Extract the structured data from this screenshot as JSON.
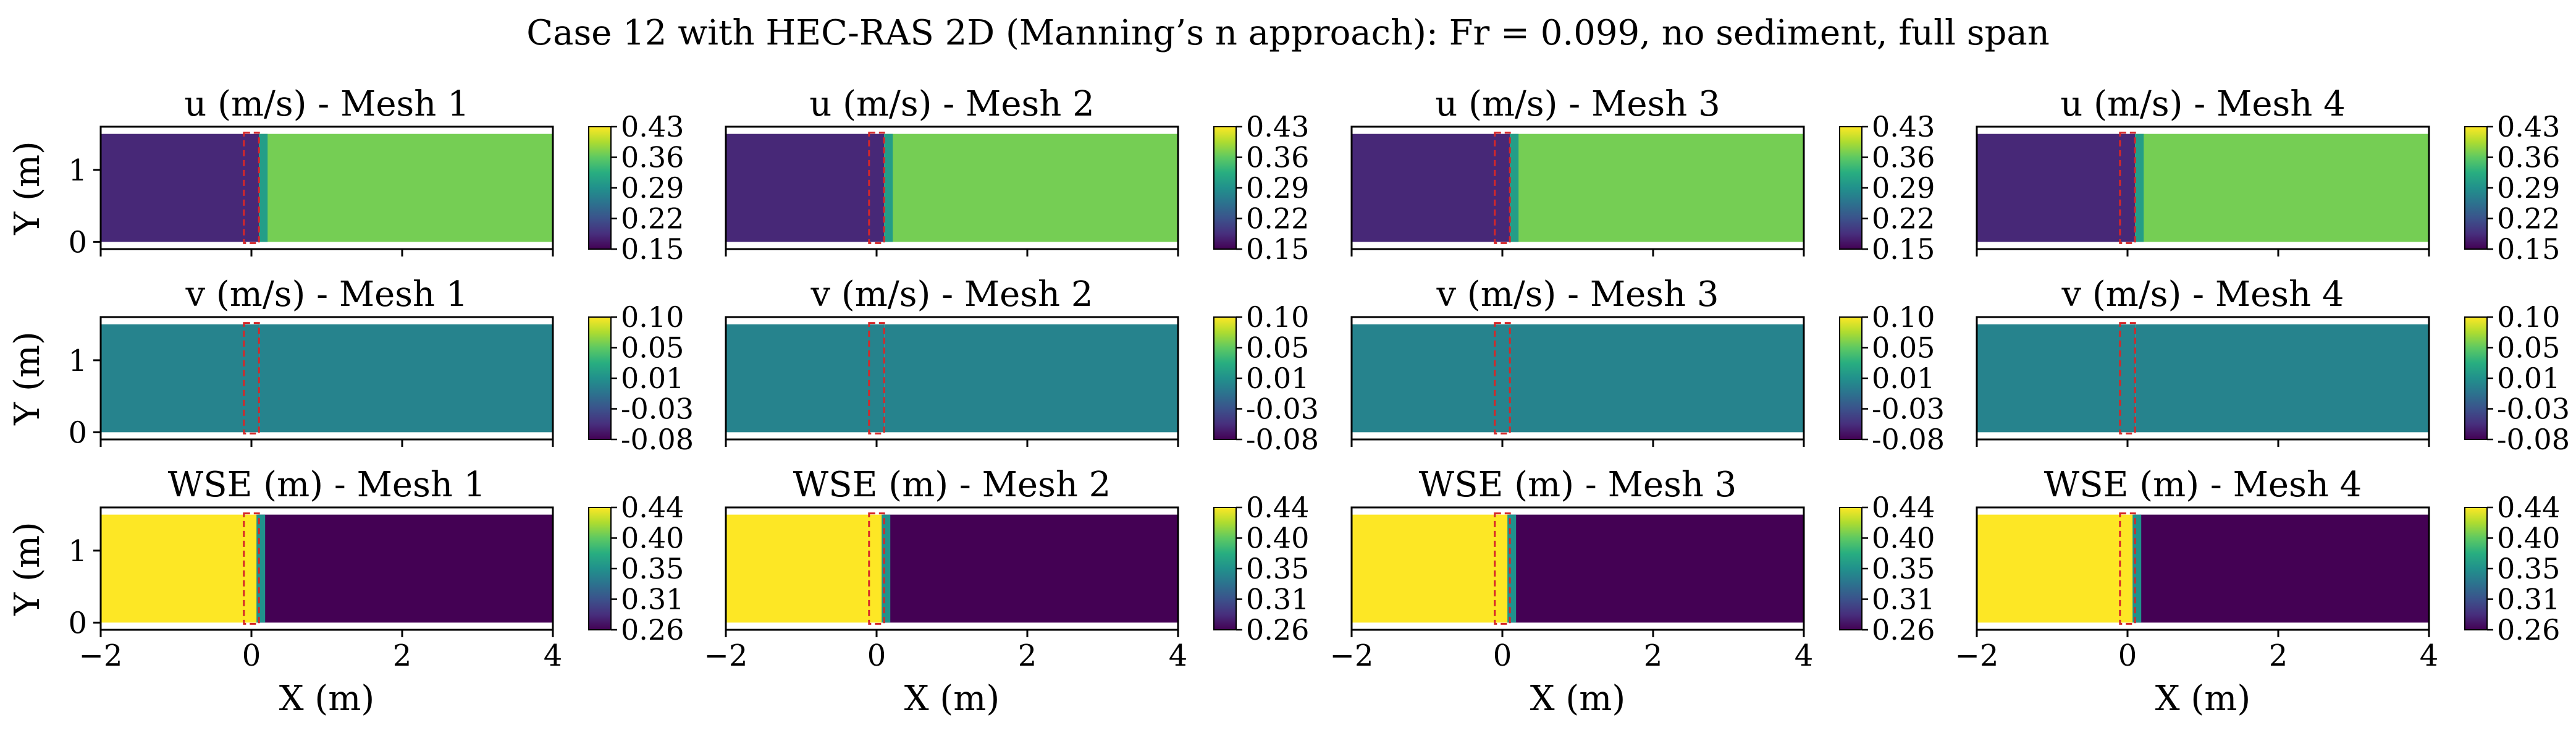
{
  "chart_data": {
    "type": "heatmap",
    "title": "Case 12 with HEC-RAS 2D (Manning’s n approach): Fr = 0.099, no sediment, full span",
    "xlabel": "X (m)",
    "ylabel": "Y (m)",
    "xlim": [
      -2,
      4
    ],
    "ylim": [
      -0.1,
      1.6
    ],
    "xticks": [
      "−2",
      "0",
      "2",
      "4"
    ],
    "yticks": [
      "0",
      "1"
    ],
    "meshes": [
      "Mesh 1",
      "Mesh 2",
      "Mesh 3",
      "Mesh 4"
    ],
    "colormap": "viridis",
    "structure_box": {
      "x": [
        -0.1,
        0.1
      ],
      "y": [
        0,
        1.5
      ],
      "color": "#d62728",
      "style": "dashed"
    },
    "domain": {
      "x": [
        -2,
        4
      ],
      "y": [
        0,
        1.5
      ]
    },
    "rows": [
      {
        "variable": "u (m/s)",
        "titles": [
          "u (m/s) - Mesh 1",
          "u (m/s) - Mesh 2",
          "u (m/s) - Mesh 3",
          "u (m/s) - Mesh 4"
        ],
        "vmin": 0.15,
        "vmax": 0.43,
        "colorbar_ticks": [
          "0.43",
          "0.36",
          "0.29",
          "0.22",
          "0.15"
        ],
        "upstream_value": 0.18,
        "downstream_value": 0.37
      },
      {
        "variable": "v (m/s)",
        "titles": [
          "v (m/s) - Mesh 1",
          "v (m/s) - Mesh 2",
          "v (m/s) - Mesh 3",
          "v (m/s) - Mesh 4"
        ],
        "vmin": -0.08,
        "vmax": 0.1,
        "colorbar_ticks": [
          "0.10",
          "0.05",
          "0.01",
          "-0.03",
          "-0.08"
        ],
        "upstream_value": 0.0,
        "downstream_value": 0.0
      },
      {
        "variable": "WSE (m)",
        "titles": [
          "WSE (m) - Mesh 1",
          "WSE (m) - Mesh 2",
          "WSE (m) - Mesh 3",
          "WSE (m) - Mesh 4"
        ],
        "vmin": 0.26,
        "vmax": 0.44,
        "colorbar_ticks": [
          "0.44",
          "0.40",
          "0.35",
          "0.31",
          "0.26"
        ],
        "upstream_value": 0.44,
        "downstream_value": 0.26
      }
    ]
  }
}
